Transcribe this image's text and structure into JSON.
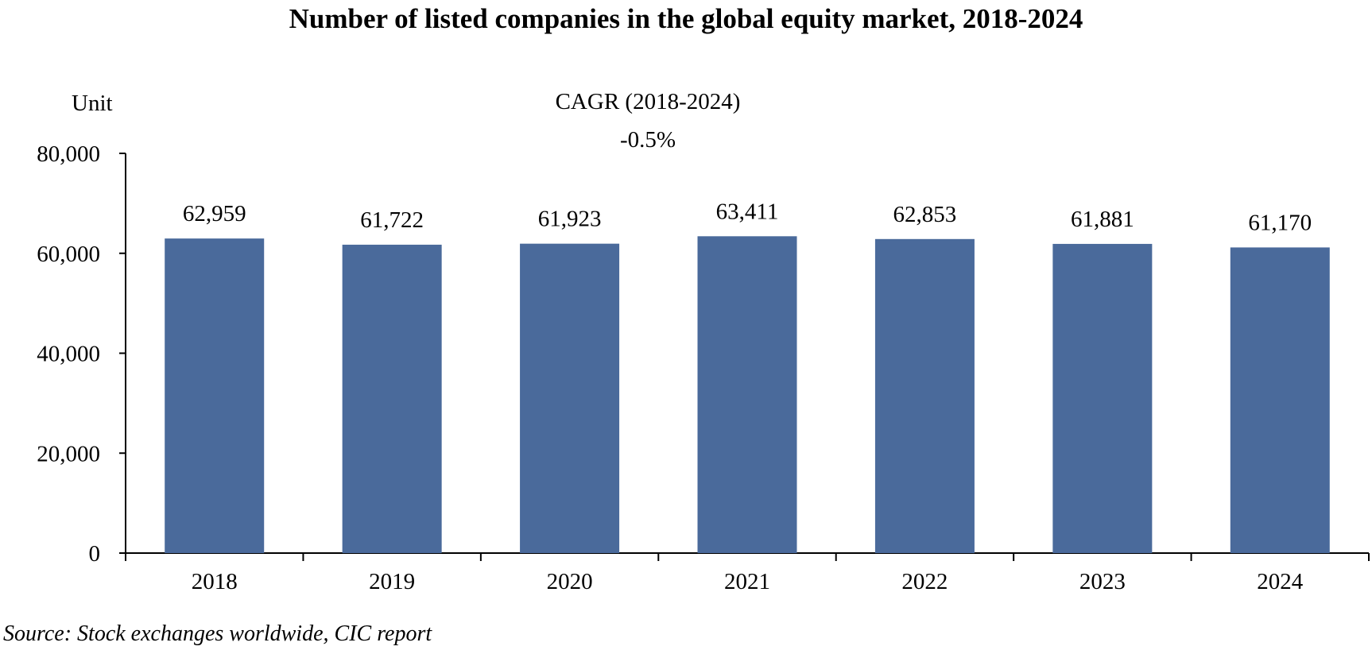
{
  "chart_data": {
    "type": "bar",
    "title": "Number of listed companies in the global equity market, 2018-2024",
    "ylabel": "Unit",
    "xlabel": "",
    "categories": [
      "2018",
      "2019",
      "2020",
      "2021",
      "2022",
      "2023",
      "2024"
    ],
    "values": [
      62959,
      61722,
      61923,
      63411,
      62853,
      61881,
      61170
    ],
    "data_labels": [
      "62,959",
      "61,722",
      "61,923",
      "63,411",
      "62,853",
      "61,881",
      "61,170"
    ],
    "ylim": [
      0,
      80000
    ],
    "yticks": [
      0,
      20000,
      40000,
      60000,
      80000
    ],
    "ytick_labels": [
      "0",
      "20,000",
      "40,000",
      "60,000",
      "80,000"
    ],
    "grid": false,
    "legend": "none",
    "bar_color": "#4a6a9b",
    "annotation": {
      "line1": "CAGR (2018-2024)",
      "line2": "-0.5%"
    },
    "source": "Source: Stock exchanges worldwide, CIC report"
  }
}
